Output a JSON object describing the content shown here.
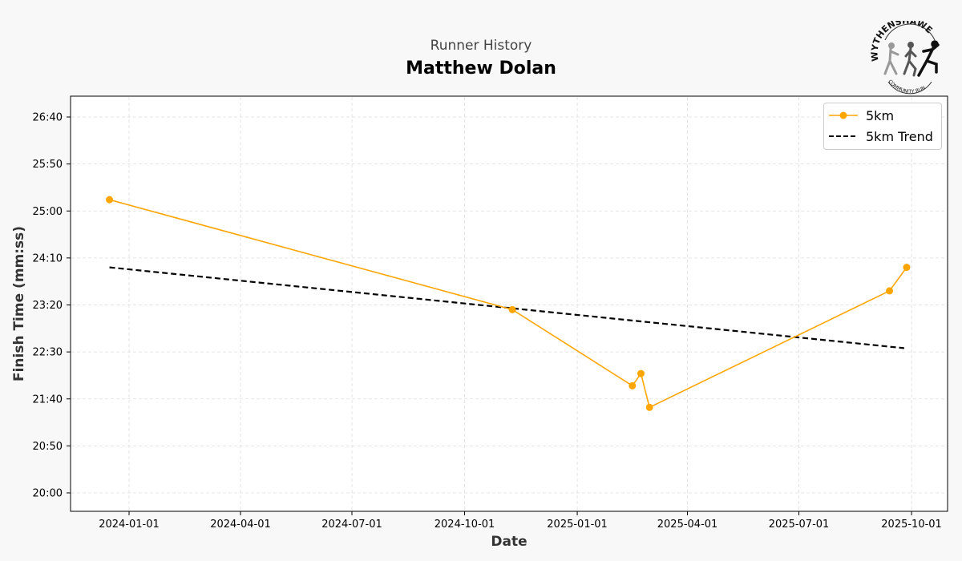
{
  "header": {
    "subtitle": "Runner History",
    "title": "Matthew Dolan"
  },
  "logo": {
    "text_top": "WYTHENSHAWE",
    "text_bottom": "COMMUNITY RUN"
  },
  "colors": {
    "series": "#ffa500",
    "trend": "#000000",
    "grid": "#dddddd"
  },
  "chart_data": {
    "type": "line",
    "title": "Matthew Dolan",
    "subtitle": "Runner History",
    "xlabel": "Date",
    "ylabel": "Finish Time (mm:ss)",
    "x_ticks": [
      "2024-01-01",
      "2024-04-01",
      "2024-07-01",
      "2024-10-01",
      "2025-01-01",
      "2025-04-01",
      "2025-07-01",
      "2025-10-01"
    ],
    "y_ticks": [
      "20:00",
      "20:50",
      "21:40",
      "22:30",
      "23:20",
      "24:10",
      "25:00",
      "25:50",
      "26:40"
    ],
    "ylim": [
      "20:00",
      "26:40"
    ],
    "grid": true,
    "legend_position": "top-right",
    "series": [
      {
        "name": "5km",
        "style": "solid-markers",
        "points": [
          {
            "date": "2023-12-16",
            "time": "25:12"
          },
          {
            "date": "2024-11-09",
            "time": "23:15"
          },
          {
            "date": "2025-02-15",
            "time": "21:54"
          },
          {
            "date": "2025-02-22",
            "time": "22:07"
          },
          {
            "date": "2025-03-01",
            "time": "21:31"
          },
          {
            "date": "2025-09-13",
            "time": "23:35"
          },
          {
            "date": "2025-09-27",
            "time": "24:00"
          }
        ]
      },
      {
        "name": "5km Trend",
        "style": "dashed",
        "points": [
          {
            "date": "2023-12-16",
            "time": "24:00"
          },
          {
            "date": "2025-09-25",
            "time": "22:34"
          }
        ]
      }
    ]
  }
}
